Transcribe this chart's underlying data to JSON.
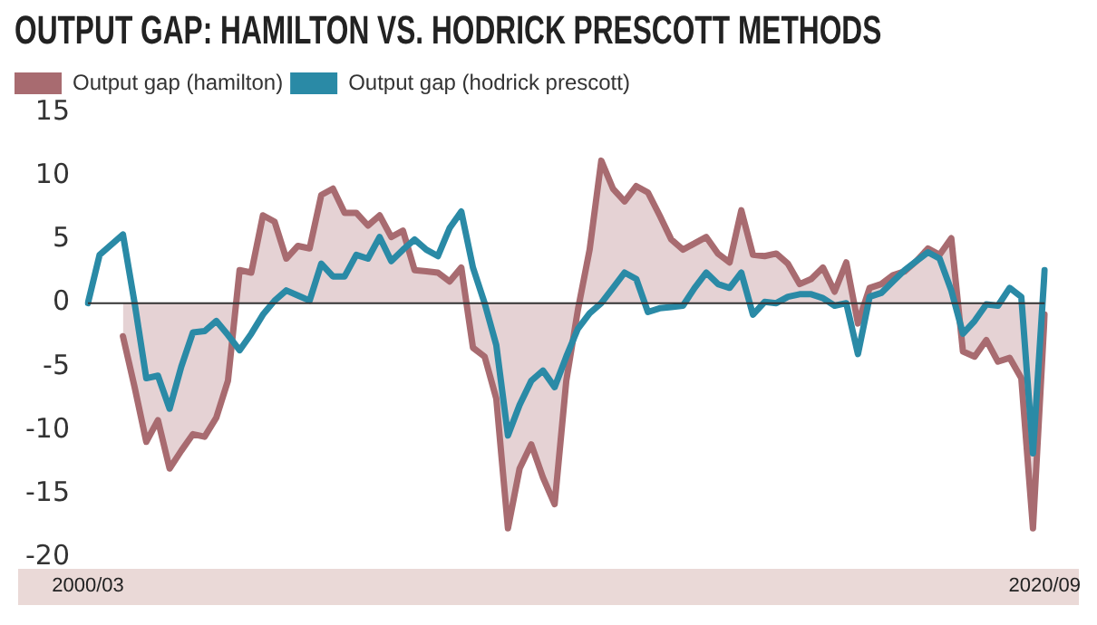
{
  "chart_data": {
    "type": "line",
    "title": "OUTPUT GAP: HAMILTON VS. HODRICK PRESCOTT METHODS",
    "categories": [
      "2000/03",
      null,
      null,
      null,
      null,
      null,
      null,
      null,
      null,
      null,
      null,
      null,
      null,
      null,
      null,
      null,
      null,
      null,
      null,
      null,
      null,
      null,
      null,
      null,
      null,
      null,
      null,
      null,
      null,
      null,
      null,
      null,
      null,
      null,
      null,
      null,
      null,
      null,
      null,
      null,
      null,
      null,
      null,
      null,
      null,
      null,
      null,
      null,
      null,
      null,
      null,
      null,
      null,
      null,
      null,
      null,
      null,
      null,
      null,
      null,
      null,
      null,
      null,
      null,
      null,
      null,
      null,
      null,
      null,
      null,
      null,
      null,
      null,
      null,
      null,
      null,
      null,
      null,
      null,
      null,
      null,
      null,
      "2020/09"
    ],
    "series": [
      {
        "name": "Output gap (hamilton)",
        "type": "area",
        "color": "#a86b70",
        "values": [
          null,
          null,
          null,
          -2.6,
          -6.6,
          -10.9,
          -9.2,
          -13,
          -11.6,
          -10.3,
          -10.5,
          -9,
          -6.1,
          2.6,
          2.4,
          6.9,
          6.4,
          3.5,
          4.5,
          4.3,
          8.5,
          9,
          7.1,
          7.1,
          6.1,
          6.9,
          5.2,
          5.7,
          2.6,
          2.5,
          2.4,
          1.7,
          2.8,
          -3.5,
          -4.2,
          -7.5,
          -17.7,
          -13,
          -11.1,
          -13.7,
          -15.8,
          -6.1,
          -0.5,
          4.2,
          11.2,
          9,
          8,
          9.2,
          8.7,
          6.9,
          5,
          4.2,
          4.7,
          5.2,
          3.9,
          3.2,
          7.3,
          3.8,
          3.7,
          3.9,
          3.1,
          1.5,
          1.9,
          2.8,
          0.9,
          3.2,
          -1.6,
          1.2,
          1.5,
          2.2,
          2.5,
          3.3,
          4.3,
          3.8,
          5.1,
          -3.8,
          -4.2,
          -2.9,
          -4.6,
          -4.3,
          -5.9,
          -17.7,
          -0.9
        ]
      },
      {
        "name": "Output gap (hodrick prescott)",
        "type": "line",
        "color": "#2a8aa6",
        "values": [
          0,
          3.8,
          4.6,
          5.4,
          0,
          -5.9,
          -5.7,
          -8.3,
          -5,
          -2.3,
          -2.2,
          -1.4,
          -2.5,
          -3.7,
          -2.4,
          -0.9,
          0.2,
          1,
          0.6,
          0.2,
          3.1,
          2.1,
          2.1,
          3.8,
          3.5,
          5.2,
          3.3,
          4.2,
          5,
          4.2,
          3.7,
          5.9,
          7.2,
          2.8,
          0,
          -3.3,
          -10.4,
          -8,
          -6.1,
          -5.3,
          -6.6,
          -4.2,
          -2,
          -0.8,
          0,
          1.2,
          2.4,
          1.9,
          -0.7,
          -0.4,
          -0.3,
          -0.2,
          1.2,
          2.4,
          1.5,
          1.2,
          2.4,
          -0.9,
          0.1,
          0,
          0.5,
          0.7,
          0.7,
          0.4,
          -0.2,
          0,
          -4,
          0.5,
          0.8,
          1.7,
          2.6,
          3.3,
          4,
          3.5,
          1,
          -2.4,
          -1.4,
          -0.1,
          -0.2,
          1.2,
          0.5,
          -11.8,
          2.6
        ]
      }
    ],
    "ylim": [
      -20,
      15
    ],
    "yticks": [
      -20,
      -15,
      -10,
      -5,
      0,
      5,
      10,
      15
    ],
    "ref_lines": [
      {
        "axis": "y",
        "value": 0,
        "color": "#333333"
      }
    ],
    "grid": false,
    "legend": "top left",
    "marker": "none",
    "line_style": "solid"
  }
}
